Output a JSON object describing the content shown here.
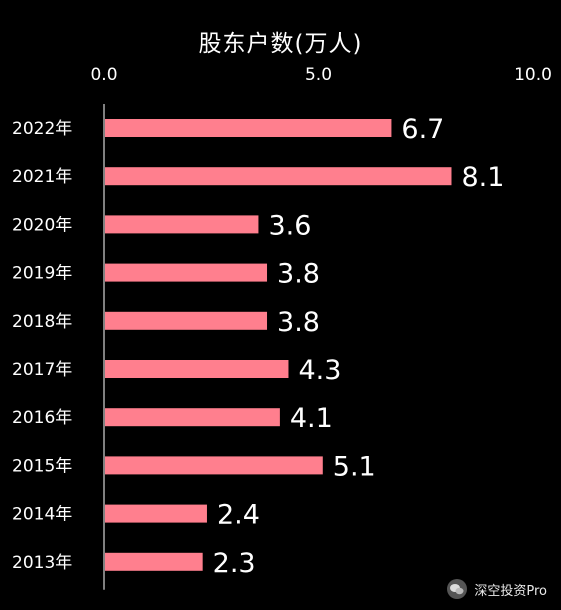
{
  "chart_data": {
    "type": "bar",
    "orientation": "horizontal",
    "title": "股东户数(万人)",
    "xlim": [
      0,
      10
    ],
    "x_ticks": [
      "0.0",
      "5.0",
      "10.0"
    ],
    "axis_position": "top",
    "grid": false,
    "categories": [
      "2022年",
      "2021年",
      "2020年",
      "2019年",
      "2018年",
      "2017年",
      "2016年",
      "2015年",
      "2014年",
      "2013年"
    ],
    "values": [
      6.7,
      8.1,
      3.6,
      3.8,
      3.8,
      4.3,
      4.1,
      5.1,
      2.4,
      2.3
    ],
    "data_labels": [
      "6.7",
      "8.1",
      "3.6",
      "3.8",
      "3.8",
      "4.3",
      "4.1",
      "5.1",
      "2.4",
      "2.3"
    ],
    "bar_color": "#ff7f8e",
    "background": "#000000"
  },
  "watermark": {
    "text": "深空投资Pro",
    "icon": "wechat-icon"
  }
}
